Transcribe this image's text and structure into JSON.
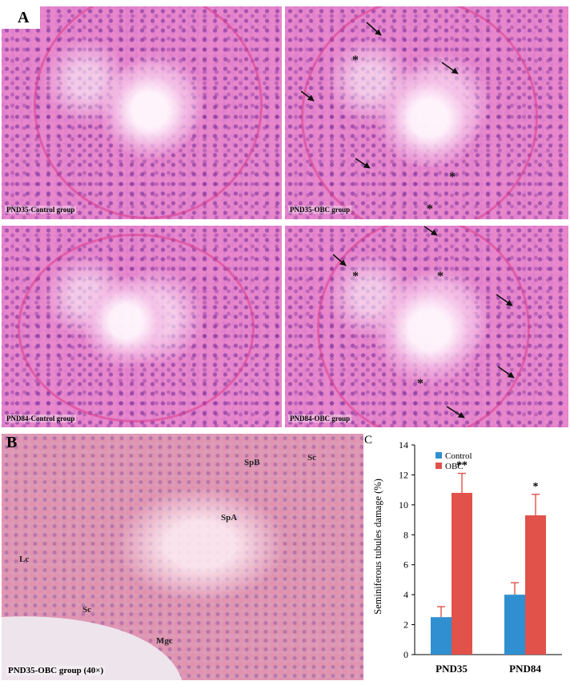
{
  "panel_labels": {
    "a": "A",
    "b": "B",
    "c": "C"
  },
  "captions": {
    "p1": "PND35-Control group",
    "p2": "PND35-OBC group",
    "p3": "PND84-Control group",
    "p4": "PND84-OBC group",
    "b": "PND35-OBC group (40×)"
  },
  "markers": {
    "asterisk": "*"
  },
  "cell_labels": {
    "spb": "SpB",
    "sc": "Sc",
    "spa": "SpA",
    "lc": "Lc",
    "mgc": "Mgc"
  },
  "colors": {
    "control": "#2f8fd0",
    "obc": "#e0524a",
    "error": "#e0524a"
  },
  "chart_data": {
    "type": "bar",
    "categories": [
      "PND35",
      "PND84"
    ],
    "series": [
      {
        "name": "Control",
        "values": [
          2.5,
          4.0
        ],
        "errors": [
          0.7,
          0.8
        ]
      },
      {
        "name": "OBC",
        "values": [
          10.8,
          9.3
        ],
        "errors": [
          1.3,
          1.4
        ]
      }
    ],
    "significance": [
      "**",
      "*"
    ],
    "ylabel": "Seminiferous tubules damage (%)",
    "ylim": [
      0,
      14
    ],
    "yticks": [
      "0",
      "2",
      "4",
      "6",
      "8",
      "10",
      "12",
      "14"
    ],
    "legend": "top-left",
    "grid": false
  }
}
